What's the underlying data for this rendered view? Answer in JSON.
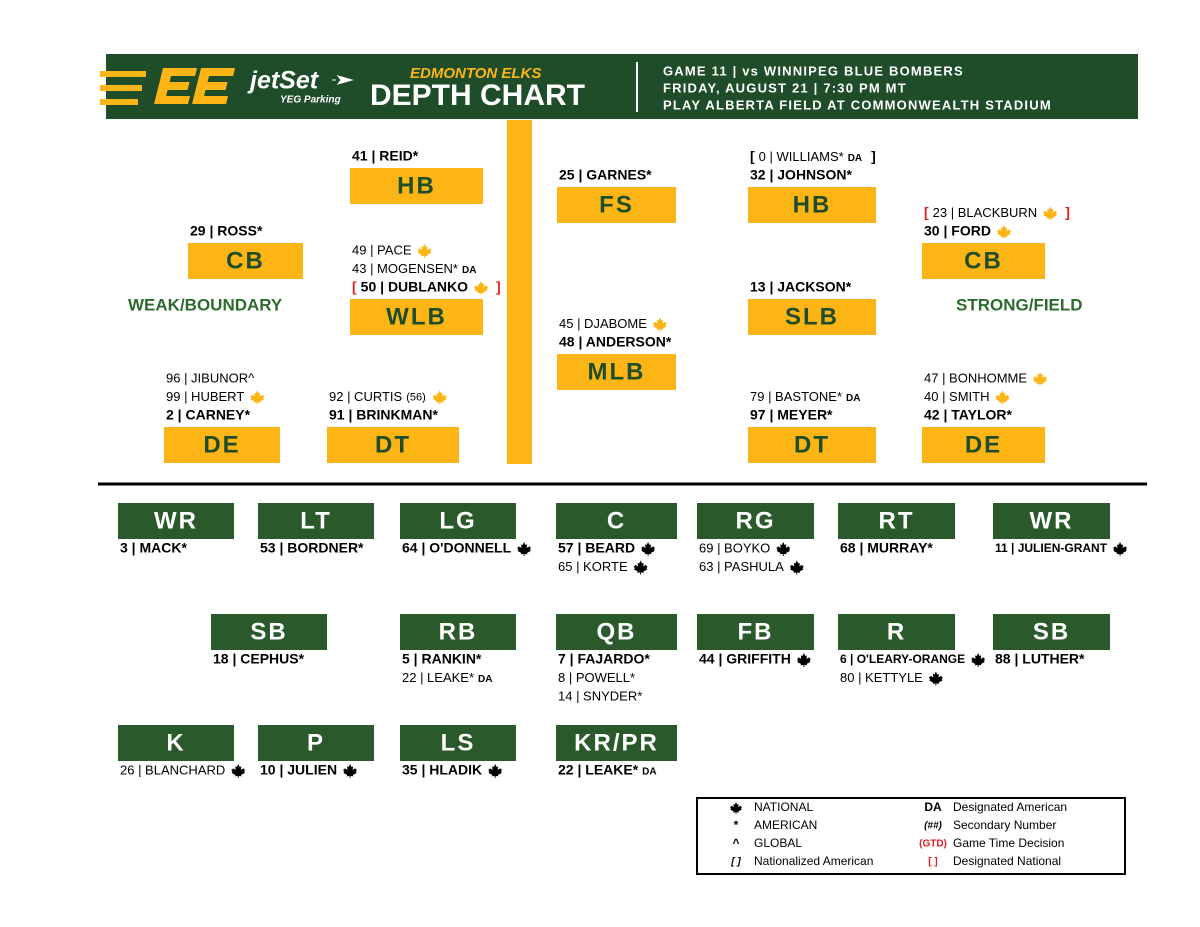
{
  "header": {
    "sponsor": "jetSet",
    "sponsor_sub": "YEG Parking",
    "team": "EDMONTON ELKS",
    "title": "DEPTH CHART",
    "game_lines": [
      "GAME 11 | vs WINNIPEG BLUE BOMBERS",
      "FRIDAY, AUGUST 21 | 7:30 PM MT",
      "PLAY ALBERTA FIELD AT COMMONWEALTH STADIUM"
    ]
  },
  "defense": {
    "side_labels": [
      "WEAK/BOUNDARY",
      "STRONG/FIELD"
    ],
    "positions": [
      {
        "label": "HB",
        "players": [
          {
            "text": "41 | REID*",
            "bold": true
          }
        ]
      },
      {
        "label": "CB",
        "players": [
          {
            "text": "29 | ROSS*",
            "bold": true
          }
        ]
      },
      {
        "label": "WLB",
        "players": [
          {
            "text": "49 | PACE",
            "national": true
          },
          {
            "text": "43 | MOGENSEN*",
            "tag": "DA"
          },
          {
            "text": "50 | DUBLANKO",
            "bold": true,
            "national": true,
            "open": "[",
            "close": "]",
            "bracket_color": "#e31b23"
          }
        ]
      },
      {
        "label": "DE",
        "players": [
          {
            "text": "96 | JIBUNOR^"
          },
          {
            "text": "99 | HUBERT",
            "national": true
          },
          {
            "text": "2 | CARNEY*",
            "bold": true
          }
        ]
      },
      {
        "label": "DT",
        "players": [
          {
            "text": "92 | CURTIS",
            "note": "(56)",
            "national": true
          },
          {
            "text": "91 | BRINKMAN*",
            "bold": true
          }
        ]
      },
      {
        "label": "FS",
        "players": [
          {
            "text": "25 | GARNES*",
            "bold": true
          }
        ]
      },
      {
        "label": "MLB",
        "players": [
          {
            "text": "45 | DJABOME",
            "national": true
          },
          {
            "text": "48 | ANDERSON*",
            "bold": true
          }
        ]
      },
      {
        "label": "HB",
        "players": [
          {
            "text": "0 | WILLIAMS*",
            "tag": "DA",
            "open": "[",
            "close": "]",
            "bracket_color": "#000000"
          },
          {
            "text": "32 | JOHNSON*",
            "bold": true
          }
        ]
      },
      {
        "label": "SLB",
        "players": [
          {
            "text": "13 | JACKSON*",
            "bold": true
          }
        ]
      },
      {
        "label": "DT",
        "players": [
          {
            "text": "79 | BASTONE*",
            "tag": "DA"
          },
          {
            "text": "97 | MEYER*",
            "bold": true
          }
        ]
      },
      {
        "label": "CB",
        "players": [
          {
            "text": "23 | BLACKBURN",
            "national": true,
            "open": "[",
            "close": "]",
            "bracket_color": "#e31b23"
          },
          {
            "text": "30 | FORD",
            "bold": true,
            "national": true
          }
        ]
      },
      {
        "label": "DE",
        "players": [
          {
            "text": "47 | BONHOMME",
            "national": true
          },
          {
            "text": "40 | SMITH",
            "national": true
          },
          {
            "text": "42 | TAYLOR*",
            "bold": true
          }
        ]
      }
    ]
  },
  "offense": {
    "positions": [
      {
        "label": "WR",
        "players": [
          {
            "text": "3 | MACK*",
            "bold": true
          }
        ]
      },
      {
        "label": "LT",
        "players": [
          {
            "text": "53 | BORDNER*",
            "bold": true
          }
        ]
      },
      {
        "label": "LG",
        "players": [
          {
            "text": "64 | O'DONNELL",
            "bold": true,
            "national": true
          }
        ]
      },
      {
        "label": "C",
        "players": [
          {
            "text": "57 | BEARD",
            "bold": true,
            "national": true
          },
          {
            "text": "65 | KORTE",
            "national": true
          }
        ]
      },
      {
        "label": "RG",
        "players": [
          {
            "text": "69 | BOYKO",
            "national": true
          },
          {
            "text": "63 | PASHULA",
            "national": true
          }
        ]
      },
      {
        "label": "RT",
        "players": [
          {
            "text": "68 | MURRAY*",
            "bold": true
          }
        ]
      },
      {
        "label": "WR",
        "players": [
          {
            "text": "11 | JULIEN-GRANT",
            "bold": true,
            "national": true
          }
        ]
      },
      {
        "label": "SB",
        "players": [
          {
            "text": "18 | CEPHUS*",
            "bold": true
          }
        ]
      },
      {
        "label": "RB",
        "players": [
          {
            "text": "5 | RANKIN*",
            "bold": true
          },
          {
            "text": "22 | LEAKE*",
            "tag": "DA"
          }
        ]
      },
      {
        "label": "QB",
        "players": [
          {
            "text": "7 | FAJARDO*",
            "bold": true
          },
          {
            "text": "8 | POWELL*"
          },
          {
            "text": "14 | SNYDER*"
          }
        ]
      },
      {
        "label": "FB",
        "players": [
          {
            "text": "44 | GRIFFITH",
            "bold": true,
            "national": true
          }
        ]
      },
      {
        "label": "R",
        "players": [
          {
            "text": "6 | O'LEARY-ORANGE",
            "bold": true,
            "national": true
          },
          {
            "text": "80 | KETTYLE",
            "national": true
          }
        ]
      },
      {
        "label": "SB",
        "players": [
          {
            "text": "88 | LUTHER*",
            "bold": true
          }
        ]
      },
      {
        "label": "K",
        "players": [
          {
            "text": "26 | BLANCHARD",
            "national": true
          }
        ]
      },
      {
        "label": "P",
        "players": [
          {
            "text": "10 | JULIEN",
            "bold": true,
            "national": true
          }
        ]
      },
      {
        "label": "LS",
        "players": [
          {
            "text": "35 | HLADIK",
            "bold": true,
            "national": true
          }
        ]
      },
      {
        "label": "KR/PR",
        "players": [
          {
            "text": "22 | LEAKE*",
            "bold": true,
            "tag": "DA"
          }
        ]
      }
    ]
  },
  "legend": {
    "items": [
      {
        "icon": "leaf",
        "text": "NATIONAL"
      },
      {
        "symbol": "*",
        "text": "AMERICAN"
      },
      {
        "symbol": "^",
        "text": "GLOBAL"
      },
      {
        "symbol": "[ ]",
        "text": "Nationalized American"
      },
      {
        "symbol": "DA",
        "text": "Designated American"
      },
      {
        "symbol": "(##)",
        "text": "Secondary Number"
      },
      {
        "symbol": "(GTD)",
        "text": "Game Time Decision",
        "color": "#e31b23"
      },
      {
        "symbol": "[ ]",
        "text": "Designated National",
        "color": "#e31b23"
      }
    ]
  }
}
